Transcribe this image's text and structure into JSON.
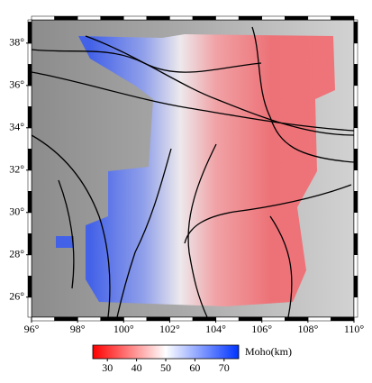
{
  "map": {
    "xlim": [
      96,
      110
    ],
    "ylim": [
      25.05,
      39.1
    ],
    "xticks": [
      {
        "value": 96,
        "label": "96°"
      },
      {
        "value": 98,
        "label": "98°"
      },
      {
        "value": 100,
        "label": "100°"
      },
      {
        "value": 102,
        "label": "102°"
      },
      {
        "value": 104,
        "label": "104°"
      },
      {
        "value": 106,
        "label": "106°"
      },
      {
        "value": 108,
        "label": "108°"
      },
      {
        "value": 110,
        "label": "110°"
      }
    ],
    "yticks": [
      {
        "value": 26,
        "label": "26°"
      },
      {
        "value": 28,
        "label": "28°"
      },
      {
        "value": 30,
        "label": "30°"
      },
      {
        "value": 32,
        "label": "32°"
      },
      {
        "value": 34,
        "label": "34°"
      },
      {
        "value": 36,
        "label": "36°"
      },
      {
        "value": 38,
        "label": "38°"
      }
    ]
  },
  "colorbar": {
    "title": "Moho(km)",
    "lim": [
      25,
      75
    ],
    "ticks": [
      30,
      40,
      50,
      60,
      70
    ],
    "colors": [
      "#ff0000",
      "#ffffff",
      "#0033ff"
    ]
  }
}
